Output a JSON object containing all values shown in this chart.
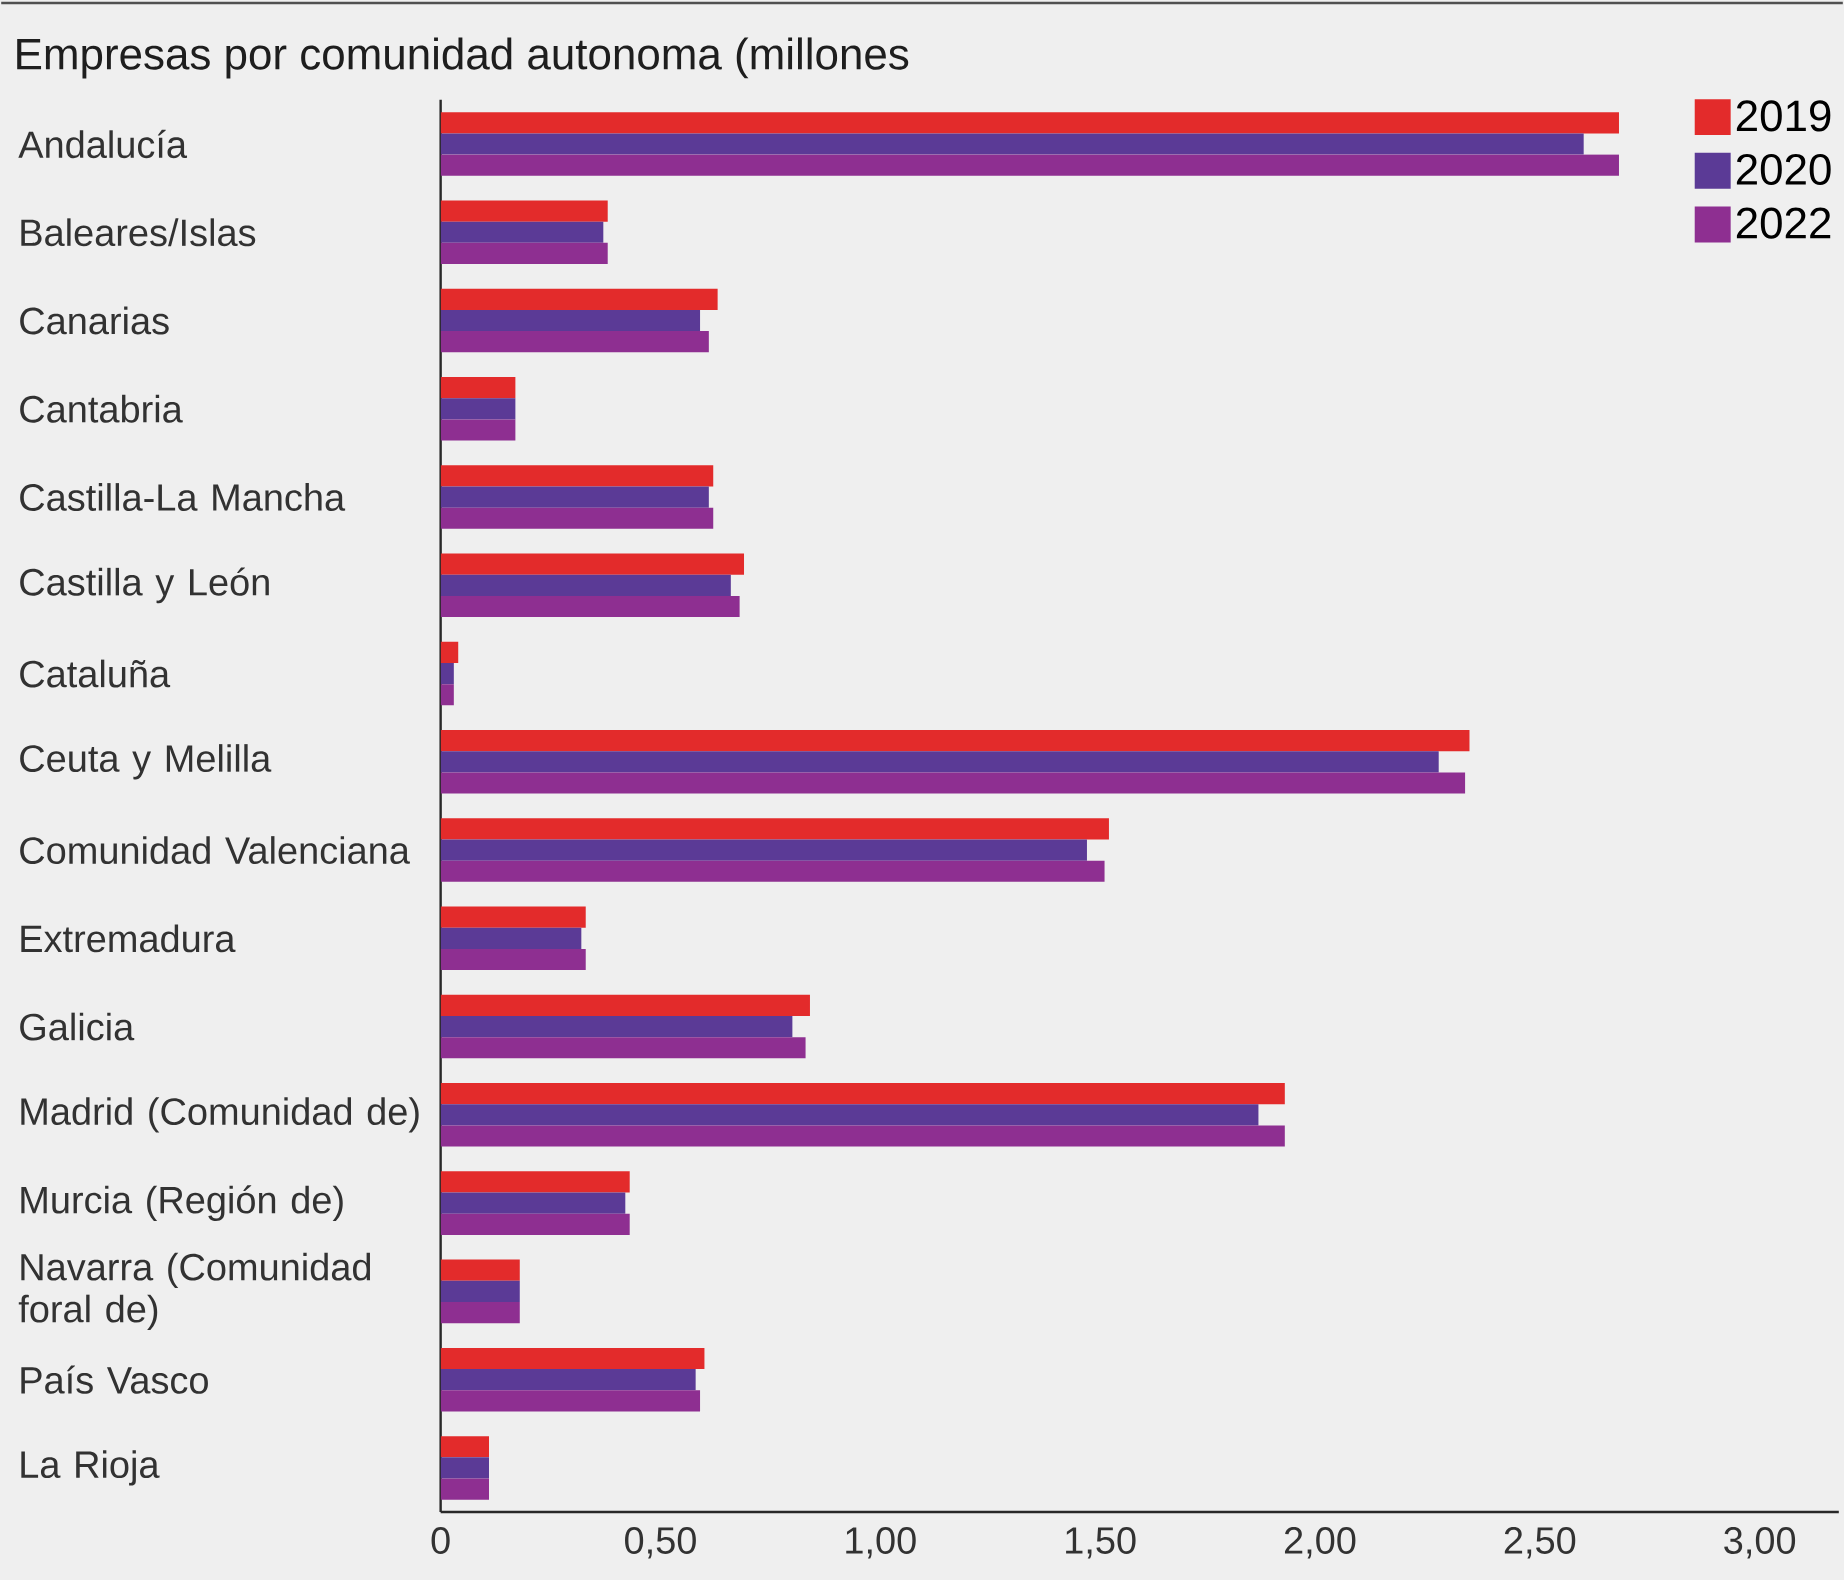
{
  "chart_data": {
    "type": "bar",
    "orientation": "horizontal",
    "title": "Empresas por comunidad autonoma (millones",
    "categories": [
      "Andalucía",
      "Baleares/Islas",
      "Canarias",
      "Cantabria",
      "Castilla-La Mancha",
      "Castilla y León",
      "Cataluña",
      "Ceuta y Melilla",
      "Comunidad Valenciana",
      "Extremadura",
      "Galicia",
      "Madrid (Comunidad de)",
      "Murcia (Región de)",
      "Navarra (Comunidad foral de)",
      "País Vasco",
      "La Rioja"
    ],
    "series": [
      {
        "name": "2019",
        "color": "#e32b2b",
        "values": [
          2.68,
          0.38,
          0.63,
          0.17,
          0.62,
          0.69,
          0.04,
          2.34,
          1.52,
          0.33,
          0.84,
          1.92,
          0.43,
          0.18,
          0.6,
          0.11
        ]
      },
      {
        "name": "2020",
        "color": "#5b3a96",
        "values": [
          2.6,
          0.37,
          0.59,
          0.17,
          0.61,
          0.66,
          0.03,
          2.27,
          1.47,
          0.32,
          0.8,
          1.86,
          0.42,
          0.18,
          0.58,
          0.11
        ]
      },
      {
        "name": "2022",
        "color": "#8e2f91",
        "values": [
          2.68,
          0.38,
          0.61,
          0.17,
          0.62,
          0.68,
          0.03,
          2.33,
          1.51,
          0.33,
          0.83,
          1.92,
          0.43,
          0.18,
          0.59,
          0.11
        ]
      }
    ],
    "xlim": [
      0,
      3.18
    ],
    "xticks": [
      0,
      {
        "value": 0.5,
        "label": "0,50"
      },
      {
        "value": 1,
        "label": "1,00"
      },
      {
        "value": 1.5,
        "label": "1,50"
      },
      {
        "value": 2,
        "label": "2,00"
      },
      {
        "value": 2.5,
        "label": "2,50"
      },
      {
        "value": 3,
        "label": "3,00"
      }
    ],
    "legend": "top right",
    "grid": false
  }
}
